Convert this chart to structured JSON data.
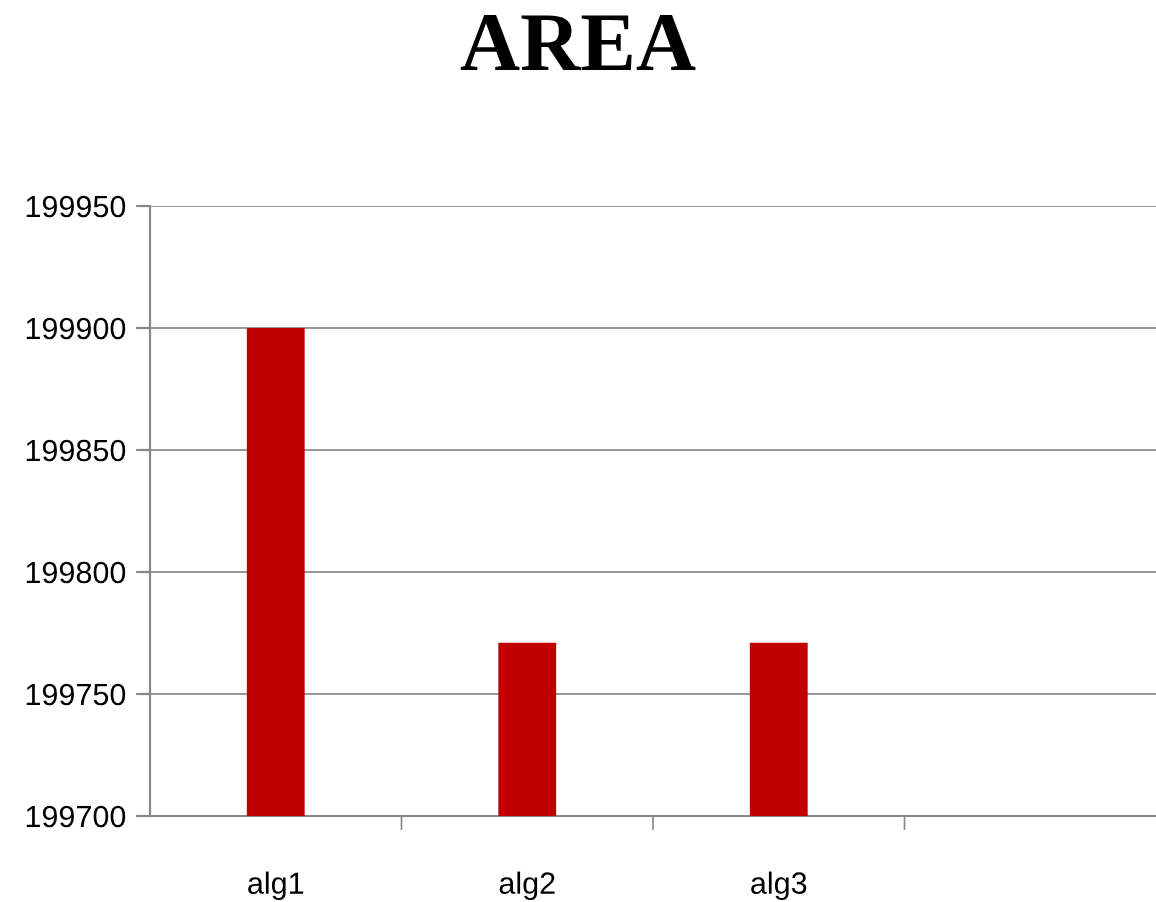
{
  "chart_data": {
    "type": "bar",
    "title": "AREA",
    "categories": [
      "alg1",
      "alg2",
      "alg3",
      null
    ],
    "values": [
      199900,
      199771,
      199771,
      null
    ],
    "color": "#c00000",
    "ylim": [
      199700,
      199950
    ],
    "yticks": [
      199700,
      199750,
      199800,
      199850,
      199900,
      199950
    ],
    "grid": "y",
    "legend": false
  }
}
